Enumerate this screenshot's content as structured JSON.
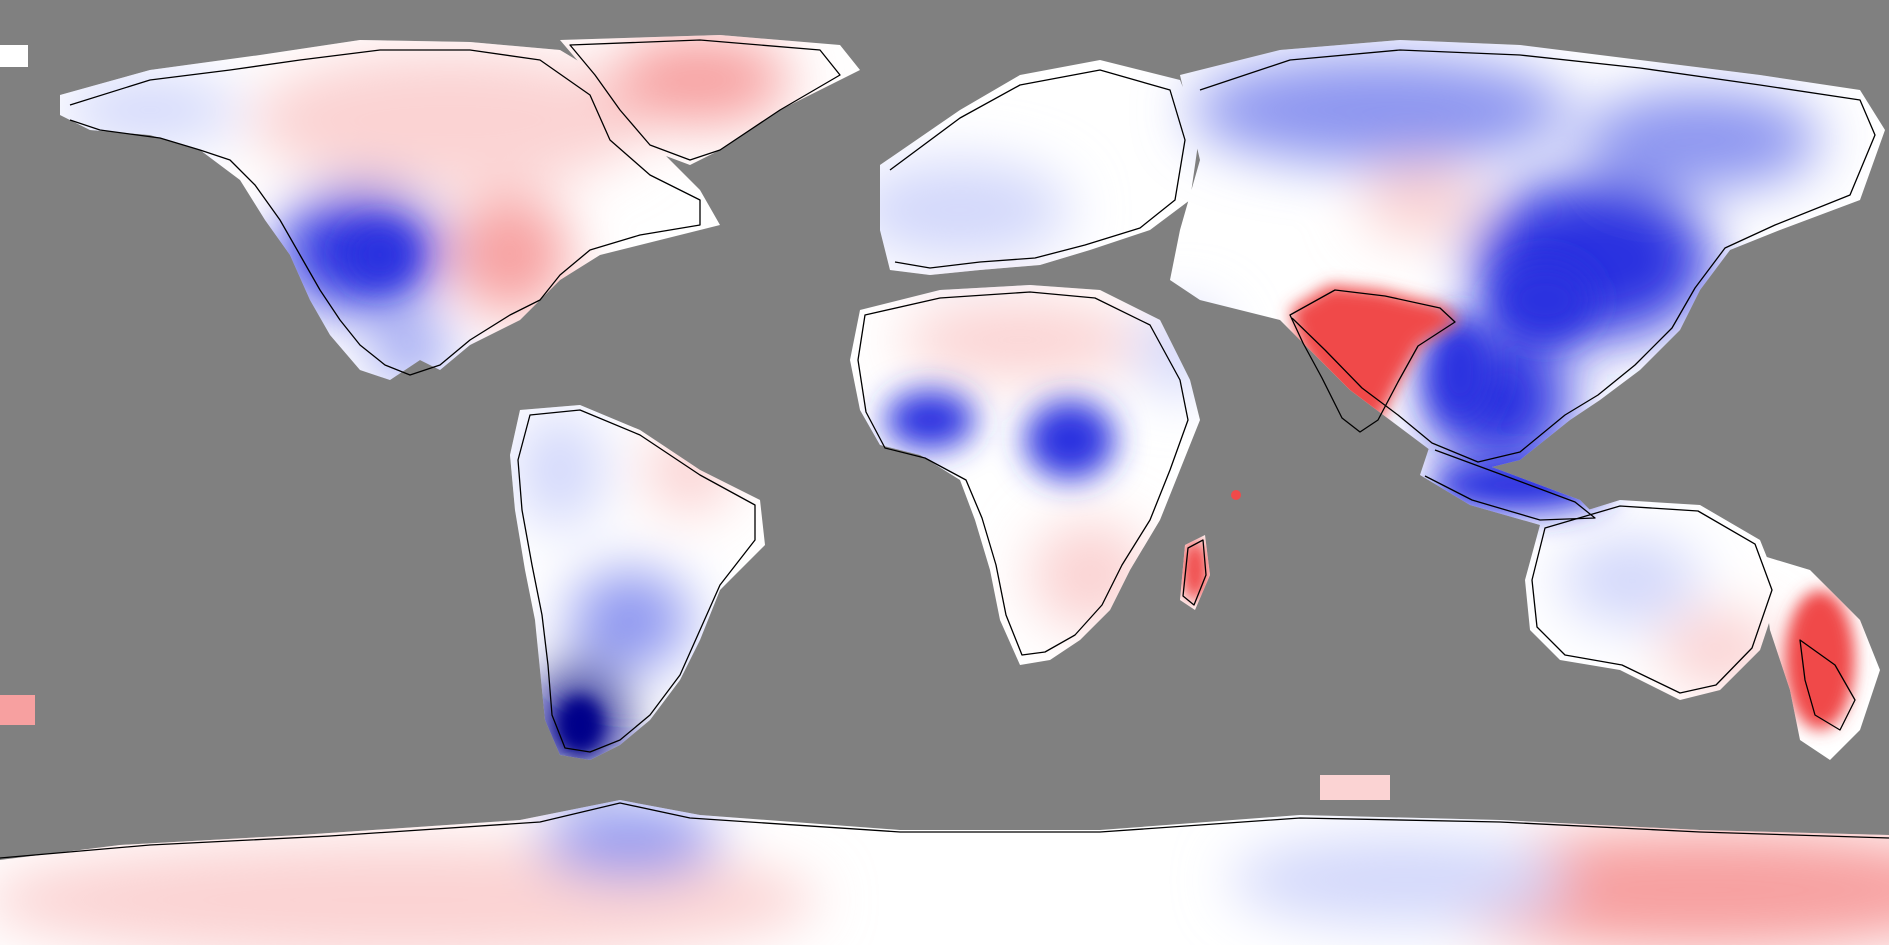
{
  "map": {
    "type": "global temperature anomaly map",
    "projection": "equirectangular",
    "colors": {
      "ocean_nodata": "#808080",
      "warm_strong": "#f04a4a",
      "warm": "#f7a0a0",
      "warm_light": "#fbd3d3",
      "neutral": "#ffffff",
      "cool_light": "#d3d8fb",
      "cool": "#8c95f0",
      "cool_strong": "#2a32e0",
      "cool_extreme": "#00008a",
      "coastline": "#000000"
    },
    "regions": [
      {
        "id": "alaska-west-canada",
        "anomaly": "cool_light"
      },
      {
        "id": "canada-north",
        "anomaly": "warm_light"
      },
      {
        "id": "greenland",
        "anomaly": "warm"
      },
      {
        "id": "western-us",
        "anomaly": "cool_strong"
      },
      {
        "id": "eastern-us",
        "anomaly": "warm"
      },
      {
        "id": "mexico",
        "anomaly": "cool"
      },
      {
        "id": "northern-south-america",
        "anomaly": "cool_light"
      },
      {
        "id": "patagonia",
        "anomaly": "cool_extreme"
      },
      {
        "id": "europe",
        "anomaly": "cool_light"
      },
      {
        "id": "north-africa",
        "anomaly": "warm_light"
      },
      {
        "id": "west-africa",
        "anomaly": "cool_strong"
      },
      {
        "id": "central-africa",
        "anomaly": "cool_strong"
      },
      {
        "id": "southern-africa",
        "anomaly": "warm_light"
      },
      {
        "id": "madagascar",
        "anomaly": "warm_strong"
      },
      {
        "id": "middle-east",
        "anomaly": "cool_light"
      },
      {
        "id": "russia-siberia",
        "anomaly": "cool"
      },
      {
        "id": "india",
        "anomaly": "warm_strong"
      },
      {
        "id": "china-east-asia",
        "anomaly": "cool_strong"
      },
      {
        "id": "southeast-asia",
        "anomaly": "cool_strong"
      },
      {
        "id": "indonesia",
        "anomaly": "cool_strong"
      },
      {
        "id": "australia",
        "anomaly": "cool_light"
      },
      {
        "id": "new-zealand-sea",
        "anomaly": "warm_strong"
      },
      {
        "id": "antarctica",
        "anomaly": "warm_light"
      }
    ]
  }
}
